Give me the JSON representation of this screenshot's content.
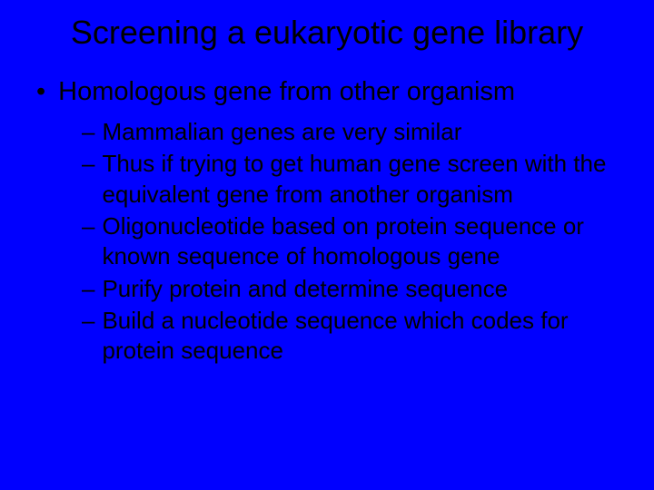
{
  "slide": {
    "background_color": "#0000ff",
    "text_color": "#000000",
    "title": "Screening a eukaryotic gene library",
    "title_fontsize": 36,
    "body_l1_fontsize": 29,
    "body_l2_fontsize": 26,
    "bullet_l1_marker": "•",
    "bullet_l2_marker": "–",
    "main_bullet": "Homologous gene from other organism",
    "sub_bullets": [
      "Mammalian genes are very similar",
      "Thus if trying to get human gene screen with the equivalent gene from another organism",
      "Oligonucleotide based on protein sequence or known sequence of homologous gene",
      "Purify protein and determine sequence",
      "Build a nucleotide sequence which codes for protein sequence"
    ]
  }
}
